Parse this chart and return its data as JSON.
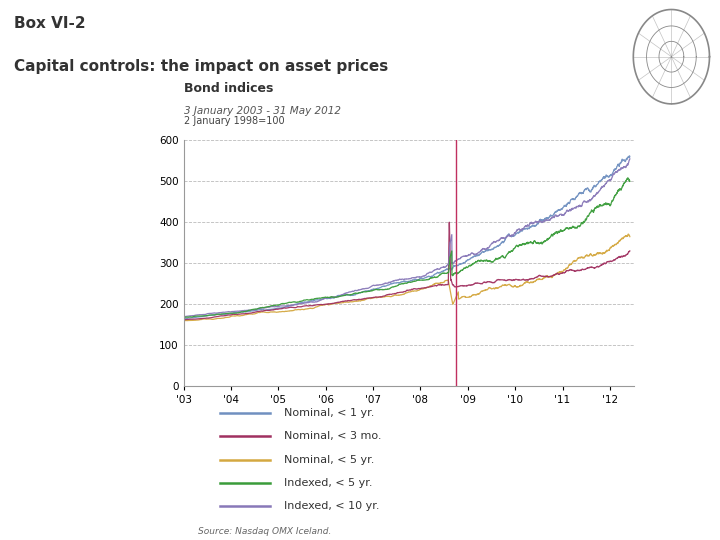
{
  "title_line1": "Box VI-2",
  "title_line2": "Capital controls: the impact on asset prices",
  "chart_title": "Bond indices",
  "chart_subtitle": "3 January 2003 - 31 May 2012",
  "ylabel": "2 January 1998=100",
  "source": "Source: Nasdaq OMX Iceland.",
  "ylim": [
    0,
    600
  ],
  "yticks": [
    0,
    100,
    200,
    300,
    400,
    500,
    600
  ],
  "xtick_labels": [
    "'03",
    "'04",
    "'05",
    "'06",
    "'07",
    "'08",
    "'09",
    "'10",
    "'11",
    "'12"
  ],
  "header_bg_color": "#6b1737",
  "header_text_color": "#333333",
  "page_bg_color": "#ffffff",
  "chart_bg_color": "#ffffff",
  "grid_color": "#aaaaaa",
  "decoration_bar_color": "#7b1c3e",
  "legend_items": [
    {
      "label": "Nominal, < 1 yr.",
      "color": "#7090c0"
    },
    {
      "label": "Nominal, < 3 mo.",
      "color": "#a03060"
    },
    {
      "label": "Nominal, < 5 yr.",
      "color": "#d4a840"
    },
    {
      "label": "Indexed, < 5 yr.",
      "color": "#3a9c3a"
    },
    {
      "label": "Indexed, < 10 yr.",
      "color": "#8878b8"
    }
  ],
  "vline_color": "#c03060",
  "vline_x": 2008.75
}
